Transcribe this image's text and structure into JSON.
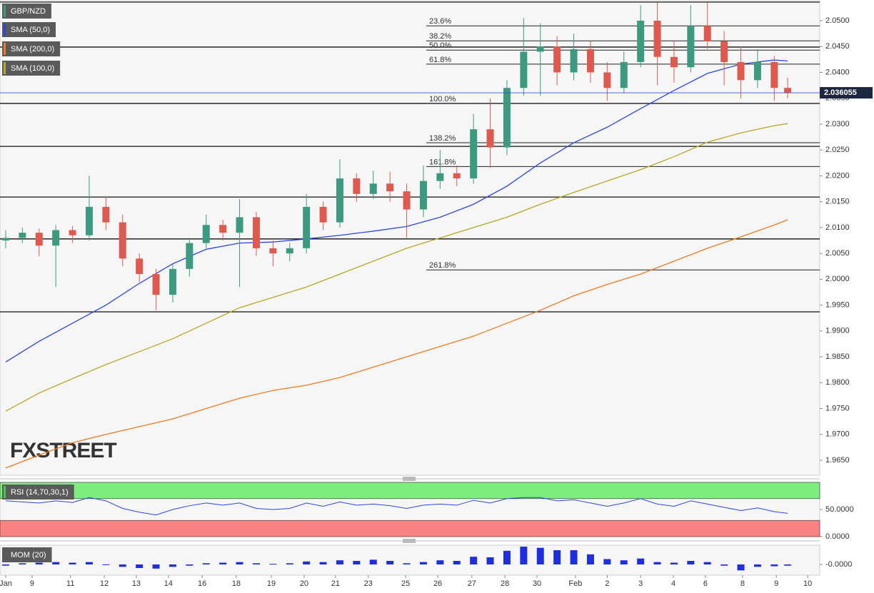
{
  "chart_data": [
    {
      "type": "candlestick",
      "title": "GBP/NZD",
      "up_color": "#3d9a80",
      "down_color": "#df5a4e",
      "x": [
        0,
        0.5,
        1,
        1.5,
        2,
        2.5,
        3,
        3.5,
        4,
        4.5,
        5,
        5.5,
        6,
        6.5,
        7,
        7.5,
        8,
        8.5,
        9,
        9.5,
        10,
        10.5,
        11,
        11.5,
        12,
        12.5,
        13,
        13.5,
        14,
        14.5,
        15,
        15.5,
        16,
        16.5,
        17,
        17.5,
        18,
        18.5,
        19,
        19.5,
        20,
        20.5,
        21,
        21.5,
        22,
        22.5,
        23,
        23.4
      ],
      "open": [
        2.0075,
        2.008,
        2.009,
        2.0065,
        2.0095,
        2.0085,
        2.014,
        2.011,
        2.004,
        2.001,
        1.997,
        2.002,
        2.007,
        2.0105,
        2.009,
        2.012,
        2.006,
        2.005,
        2.006,
        2.014,
        2.011,
        2.0195,
        2.0165,
        2.0185,
        2.017,
        2.0135,
        2.019,
        2.0205,
        2.0195,
        2.029,
        2.0255,
        2.037,
        2.044,
        2.045,
        2.04,
        2.0445,
        2.04,
        2.037,
        2.042,
        2.05,
        2.043,
        2.041,
        2.049,
        2.046,
        2.042,
        2.0385,
        2.042,
        2.037
      ],
      "high": [
        2.0095,
        2.01,
        2.0098,
        2.0105,
        2.0103,
        2.02,
        2.016,
        2.0125,
        2.005,
        2.002,
        2.003,
        2.008,
        2.0125,
        2.0115,
        2.0155,
        2.013,
        2.0075,
        2.007,
        2.0165,
        2.015,
        2.0232,
        2.0205,
        2.021,
        2.0208,
        2.0185,
        2.022,
        2.025,
        2.022,
        2.032,
        2.035,
        2.0385,
        2.0505,
        2.0495,
        2.047,
        2.0475,
        2.046,
        2.042,
        2.044,
        2.053,
        2.0535,
        2.046,
        2.053,
        2.0535,
        2.048,
        2.045,
        2.0445,
        2.0432,
        2.039
      ],
      "low": [
        2.006,
        2.007,
        2.0045,
        1.9985,
        2.007,
        2.0075,
        2.0095,
        2.0025,
        1.9995,
        1.994,
        1.9955,
        2.0005,
        2.006,
        2.0075,
        1.9985,
        2.0045,
        2.0025,
        2.0035,
        2.005,
        2.0095,
        2.01,
        2.015,
        2.0155,
        2.015,
        2.008,
        2.012,
        2.0175,
        2.018,
        2.0185,
        2.0215,
        2.024,
        2.0355,
        2.0355,
        2.0375,
        2.0385,
        2.038,
        2.0345,
        2.036,
        2.041,
        2.0375,
        2.038,
        2.04,
        2.0445,
        2.0375,
        2.035,
        2.037,
        2.0345,
        2.035
      ],
      "close": [
        2.008,
        2.009,
        2.0065,
        2.0095,
        2.0085,
        2.014,
        2.011,
        2.004,
        2.001,
        1.997,
        2.002,
        2.007,
        2.0105,
        2.009,
        2.012,
        2.006,
        2.005,
        2.006,
        2.014,
        2.011,
        2.0195,
        2.0165,
        2.0185,
        2.017,
        2.0135,
        2.019,
        2.0205,
        2.0195,
        2.029,
        2.0255,
        2.037,
        2.044,
        2.045,
        2.04,
        2.0445,
        2.04,
        2.037,
        2.042,
        2.05,
        2.043,
        2.041,
        2.049,
        2.046,
        2.042,
        2.0385,
        2.042,
        2.037,
        2.0361
      ],
      "overlays": [
        {
          "name": "SMA (50,0)",
          "color": "#2b46e0",
          "x": [
            0,
            1,
            2,
            3,
            4,
            5,
            6,
            7,
            8,
            9,
            10,
            11,
            12,
            13,
            14,
            15,
            16,
            17,
            18,
            19,
            20,
            21,
            22,
            23,
            23.4
          ],
          "values": [
            1.984,
            1.988,
            1.9915,
            1.995,
            1.9992,
            2.003,
            2.0058,
            2.007,
            2.0072,
            2.0078,
            2.0085,
            2.0093,
            2.0102,
            2.012,
            2.0145,
            2.018,
            2.0225,
            2.0264,
            2.0294,
            2.033,
            2.0365,
            2.0398,
            2.0416,
            2.0424,
            2.0422
          ]
        },
        {
          "name": "SMA (200,0)",
          "color": "#f07a20",
          "x": [
            0,
            1,
            2,
            3,
            4,
            5,
            6,
            7,
            8,
            9,
            10,
            11,
            12,
            13,
            14,
            15,
            16,
            17,
            18,
            19,
            20,
            21,
            22,
            23,
            23.4
          ],
          "values": [
            1.9635,
            1.966,
            1.9684,
            1.97,
            1.9715,
            1.973,
            1.975,
            1.977,
            1.9785,
            1.9795,
            1.981,
            1.983,
            1.985,
            1.987,
            1.989,
            1.9915,
            1.994,
            1.9968,
            1.999,
            2.001,
            2.0035,
            2.006,
            2.0082,
            2.0105,
            2.0115
          ]
        },
        {
          "name": "SMA (100,0)",
          "color": "#b5a826",
          "x": [
            0,
            1,
            2,
            3,
            4,
            5,
            6,
            7,
            8,
            9,
            10,
            11,
            12,
            13,
            14,
            15,
            16,
            17,
            18,
            19,
            20,
            21,
            22,
            23,
            23.4
          ],
          "values": [
            1.9745,
            1.978,
            1.9808,
            1.9835,
            1.986,
            1.9885,
            1.9915,
            1.9945,
            1.9965,
            1.9985,
            2.001,
            2.0035,
            2.006,
            2.008,
            2.01,
            2.012,
            2.0145,
            2.0168,
            2.019,
            2.0212,
            2.0237,
            2.0265,
            2.0283,
            2.0297,
            2.0301
          ]
        }
      ],
      "hlines": [
        2.0536,
        2.0449,
        2.034,
        2.0257,
        2.0159,
        2.0078,
        1.9937
      ],
      "fib_levels": [
        {
          "label": "23.6%",
          "value": 2.049
        },
        {
          "label": "38.2%",
          "value": 2.0461
        },
        {
          "label": "50.0%",
          "value": 2.0443
        },
        {
          "label": "61.8%",
          "value": 2.0416
        },
        {
          "label": "100.0%",
          "value": 2.034
        },
        {
          "label": "138.2%",
          "value": 2.0264
        },
        {
          "label": "161.8%",
          "value": 2.0218
        },
        {
          "label": "261.8%",
          "value": 2.0018
        }
      ],
      "last_price": 2.036055,
      "watermark": "FXSTREET",
      "xlim": [
        -0.17,
        24.36
      ],
      "xticks": [
        {
          "value": 0,
          "label": "Jan"
        },
        {
          "value": 0.79,
          "label": "9"
        },
        {
          "value": 1.94,
          "label": "11"
        },
        {
          "value": 2.95,
          "label": "12"
        },
        {
          "value": 3.91,
          "label": "13"
        },
        {
          "value": 4.87,
          "label": "14"
        },
        {
          "value": 5.88,
          "label": "16"
        },
        {
          "value": 6.9,
          "label": "18"
        },
        {
          "value": 7.95,
          "label": "19"
        },
        {
          "value": 8.93,
          "label": "20"
        },
        {
          "value": 9.87,
          "label": "21"
        },
        {
          "value": 10.85,
          "label": "23"
        },
        {
          "value": 11.97,
          "label": "25"
        },
        {
          "value": 12.93,
          "label": "26"
        },
        {
          "value": 13.95,
          "label": "27"
        },
        {
          "value": 14.94,
          "label": "28"
        },
        {
          "value": 15.9,
          "label": "30"
        },
        {
          "value": 17.05,
          "label": "Feb"
        },
        {
          "value": 18.0,
          "label": "2"
        },
        {
          "value": 19.0,
          "label": "3"
        },
        {
          "value": 19.98,
          "label": "4"
        },
        {
          "value": 20.94,
          "label": "6"
        },
        {
          "value": 22.05,
          "label": "8"
        },
        {
          "value": 23.06,
          "label": "9"
        },
        {
          "value": 24.0,
          "label": "10"
        }
      ],
      "ylim": [
        1.9621,
        2.054
      ],
      "yticks": [
        {
          "value": 1.965,
          "label": "1.9650"
        },
        {
          "value": 1.97,
          "label": "1.9700"
        },
        {
          "value": 1.975,
          "label": "1.9750"
        },
        {
          "value": 1.98,
          "label": "1.9800"
        },
        {
          "value": 1.985,
          "label": "1.9850"
        },
        {
          "value": 1.99,
          "label": "1.9900"
        },
        {
          "value": 1.995,
          "label": "1.9950"
        },
        {
          "value": 2.0,
          "label": "2.0000"
        },
        {
          "value": 2.005,
          "label": "2.0050"
        },
        {
          "value": 2.01,
          "label": "2.0100"
        },
        {
          "value": 2.015,
          "label": "2.0150"
        },
        {
          "value": 2.02,
          "label": "2.0200"
        },
        {
          "value": 2.025,
          "label": "2.0250"
        },
        {
          "value": 2.03,
          "label": "2.0300"
        },
        {
          "value": 2.035,
          "label": "2.0350"
        },
        {
          "value": 2.04,
          "label": "2.0400"
        },
        {
          "value": 2.045,
          "label": "2.0450"
        },
        {
          "value": 2.05,
          "label": "2.0500"
        }
      ]
    },
    {
      "type": "line",
      "title": "RSI (14,70,30,1)",
      "color": "#2b46e0",
      "overbought": 70,
      "oversold": 30,
      "band_colors": [
        "#7ded7d",
        "#f98383"
      ],
      "x": [
        0,
        0.5,
        1,
        1.5,
        2,
        2.5,
        3,
        3.5,
        4,
        4.5,
        5,
        5.5,
        6,
        6.5,
        7,
        7.5,
        8,
        8.5,
        9,
        9.5,
        10,
        10.5,
        11,
        11.5,
        12,
        12.5,
        13,
        13.5,
        14,
        14.5,
        15,
        15.5,
        16,
        16.5,
        17,
        17.5,
        18,
        18.5,
        19,
        19.5,
        20,
        20.5,
        21,
        21.5,
        22,
        22.5,
        23,
        23.4
      ],
      "values": [
        66,
        64,
        62,
        66,
        63,
        72,
        66,
        52,
        45,
        40,
        50,
        57,
        62,
        58,
        62,
        52,
        50,
        52,
        62,
        56,
        64,
        58,
        60,
        57,
        52,
        58,
        60,
        58,
        67,
        62,
        70,
        72,
        72,
        66,
        68,
        62,
        56,
        62,
        70,
        60,
        56,
        66,
        60,
        54,
        48,
        53,
        46,
        43
      ],
      "ylim": [
        0,
        100
      ],
      "yticks": [
        {
          "value": 50,
          "label": "50.0000"
        },
        {
          "value": 0,
          "label": "0.0000"
        }
      ]
    },
    {
      "type": "bar",
      "title": "MOM (20)",
      "color": "#1f2fe0",
      "x": [
        0,
        0.5,
        1,
        1.5,
        2,
        2.5,
        3,
        3.5,
        4,
        4.5,
        5,
        5.5,
        6,
        6.5,
        7,
        7.5,
        8,
        8.5,
        9,
        9.5,
        10,
        10.5,
        11,
        11.5,
        12,
        12.5,
        13,
        13.5,
        14,
        14.5,
        15,
        15.5,
        16,
        16.5,
        17,
        17.5,
        18,
        18.5,
        19,
        19.5,
        20,
        20.5,
        21,
        21.5,
        22,
        22.5,
        23,
        23.4
      ],
      "values": [
        -0.001,
        0.001,
        0.0015,
        0.002,
        0.0015,
        0.002,
        -0.0005,
        -0.002,
        -0.003,
        -0.0035,
        -0.002,
        -0.001,
        0.001,
        0.0015,
        0.002,
        0.001,
        0.0005,
        0.001,
        0.0025,
        0.002,
        0.0035,
        0.003,
        0.004,
        0.003,
        0.001,
        0.002,
        0.0035,
        0.003,
        0.0065,
        0.006,
        0.0115,
        0.015,
        0.014,
        0.012,
        0.012,
        0.0085,
        0.0045,
        0.0035,
        0.005,
        0.002,
        0.0015,
        0.003,
        0.002,
        -0.001,
        -0.005,
        -0.002,
        -0.0015,
        -0.001
      ],
      "ylim": [
        -0.009,
        0.0162
      ],
      "yticks": [
        {
          "value": 0,
          "label": "-0.0000"
        }
      ]
    }
  ]
}
